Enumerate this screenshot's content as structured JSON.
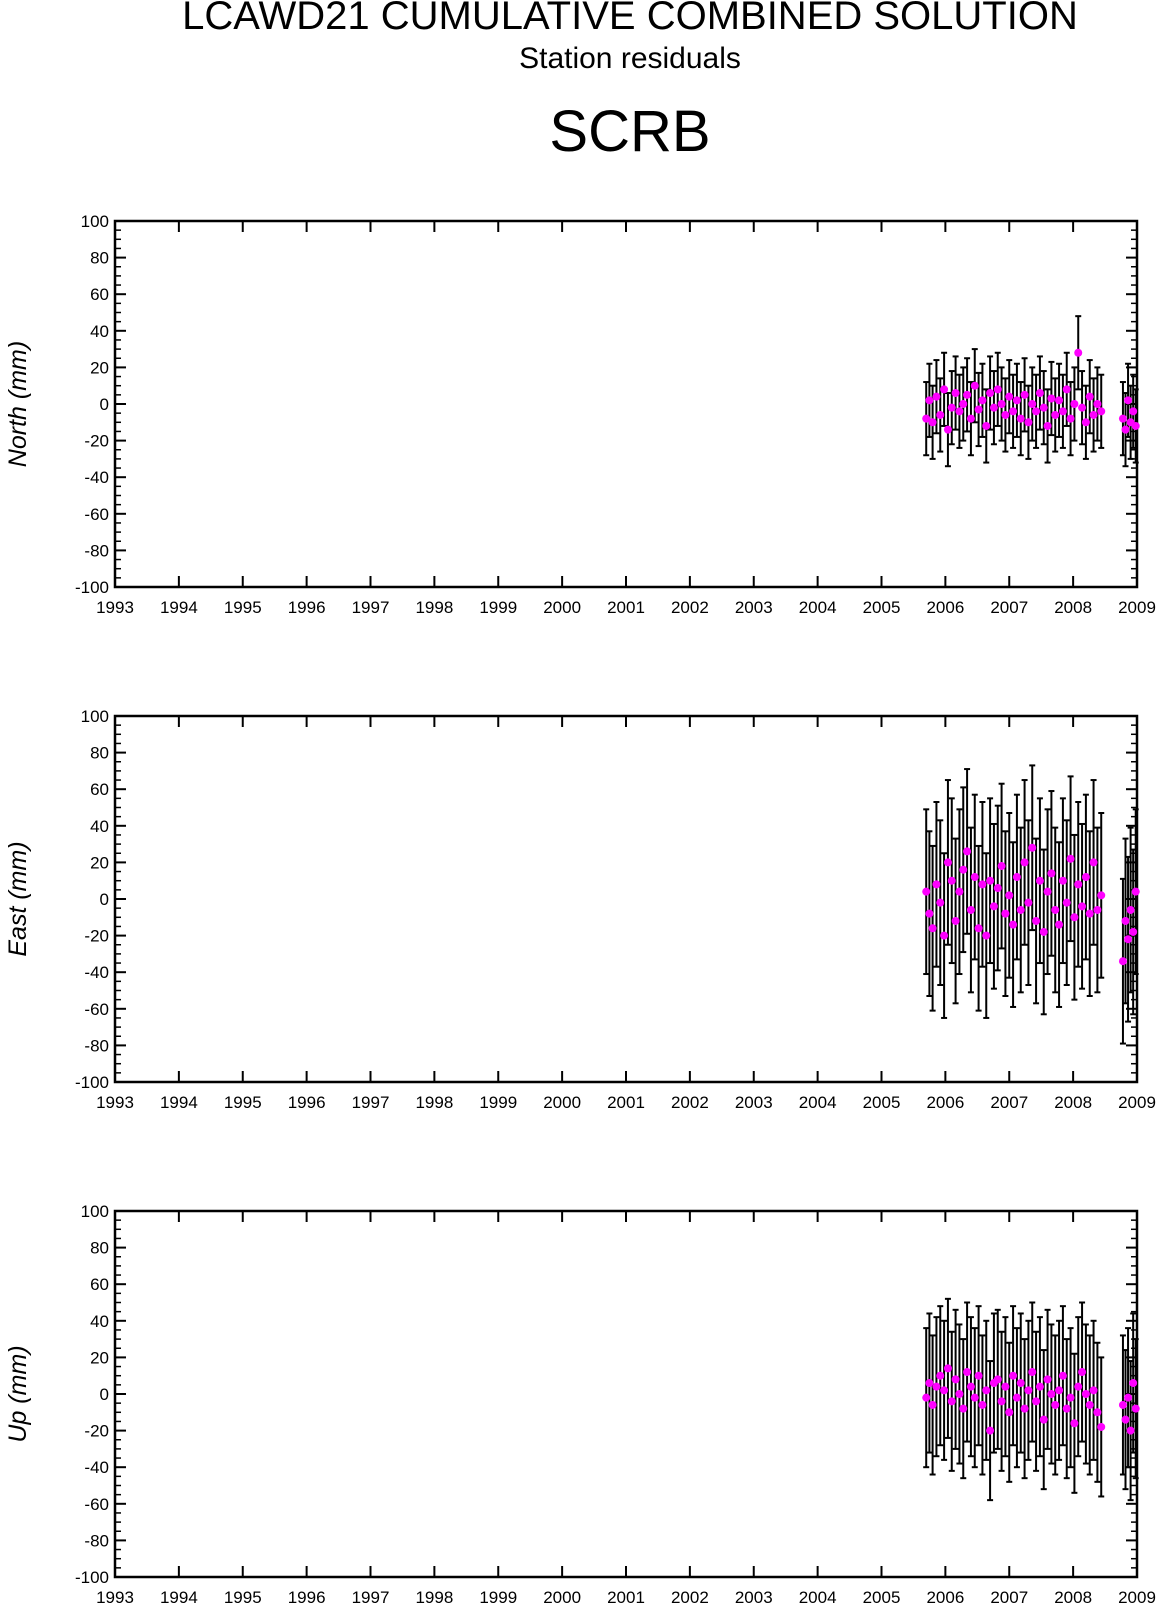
{
  "header": {
    "title": "LCAWD21 CUMULATIVE COMBINED SOLUTION",
    "subtitle": "Station residuals",
    "station": "SCRB"
  },
  "colors": {
    "point": "#ff00ff",
    "errorbar": "#000000",
    "axis": "#000000"
  },
  "chart_data": [
    {
      "type": "scatter",
      "ylabel": "North (mm)",
      "xlim": [
        1993,
        2009
      ],
      "ylim": [
        -100,
        100
      ],
      "x_ticks": [
        "1993",
        "1994",
        "1995",
        "1996",
        "1997",
        "1998",
        "1999",
        "2000",
        "2001",
        "2002",
        "2003",
        "2004",
        "2005",
        "2006",
        "2007",
        "2008",
        "2009"
      ],
      "y_ticks": [
        "100",
        "80",
        "60",
        "40",
        "20",
        "0",
        "-20",
        "-40",
        "-60",
        "-80",
        "-100"
      ],
      "error_bar_half_width": 20,
      "series": [
        {
          "x": [
            2005.7,
            2005.75,
            2005.8,
            2005.86,
            2005.92,
            2005.98,
            2006.04,
            2006.1,
            2006.16,
            2006.22,
            2006.28,
            2006.34,
            2006.4,
            2006.46,
            2006.52,
            2006.58,
            2006.64,
            2006.7,
            2006.76,
            2006.82,
            2006.88,
            2006.94,
            2007.0,
            2007.06,
            2007.12,
            2007.18,
            2007.24,
            2007.3,
            2007.36,
            2007.42,
            2007.48,
            2007.54,
            2007.6,
            2007.66,
            2007.72,
            2007.78,
            2007.84,
            2007.9,
            2007.96,
            2008.02,
            2008.08,
            2008.14,
            2008.2,
            2008.26,
            2008.32,
            2008.38,
            2008.44,
            2008.78,
            2008.82,
            2008.86,
            2008.9,
            2008.94,
            2008.98
          ],
          "y": [
            -8,
            2,
            -10,
            4,
            -6,
            8,
            -14,
            -2,
            6,
            -4,
            0,
            5,
            -8,
            10,
            -3,
            2,
            -12,
            6,
            -2,
            8,
            0,
            -6,
            4,
            -4,
            2,
            -8,
            5,
            -10,
            0,
            -4,
            6,
            -2,
            -12,
            3,
            -6,
            2,
            -4,
            8,
            -8,
            0,
            28,
            -2,
            -10,
            4,
            -6,
            0,
            -4,
            -8,
            -14,
            2,
            -10,
            -4,
            -12
          ]
        }
      ]
    },
    {
      "type": "scatter",
      "ylabel": "East (mm)",
      "xlim": [
        1993,
        2009
      ],
      "ylim": [
        -100,
        100
      ],
      "x_ticks": [
        "1993",
        "1994",
        "1995",
        "1996",
        "1997",
        "1998",
        "1999",
        "2000",
        "2001",
        "2002",
        "2003",
        "2004",
        "2005",
        "2006",
        "2007",
        "2008",
        "2009"
      ],
      "y_ticks": [
        "100",
        "80",
        "60",
        "40",
        "20",
        "0",
        "-20",
        "-40",
        "-60",
        "-80",
        "-100"
      ],
      "error_bar_half_width": 45,
      "series": [
        {
          "x": [
            2005.7,
            2005.75,
            2005.8,
            2005.86,
            2005.92,
            2005.98,
            2006.04,
            2006.1,
            2006.16,
            2006.22,
            2006.28,
            2006.34,
            2006.4,
            2006.46,
            2006.52,
            2006.58,
            2006.64,
            2006.7,
            2006.76,
            2006.82,
            2006.88,
            2006.94,
            2007.0,
            2007.06,
            2007.12,
            2007.18,
            2007.24,
            2007.3,
            2007.36,
            2007.42,
            2007.48,
            2007.54,
            2007.6,
            2007.66,
            2007.72,
            2007.78,
            2007.84,
            2007.9,
            2007.96,
            2008.02,
            2008.08,
            2008.14,
            2008.2,
            2008.26,
            2008.32,
            2008.38,
            2008.44,
            2008.78,
            2008.82,
            2008.86,
            2008.9,
            2008.94,
            2008.98
          ],
          "y": [
            4,
            -8,
            -16,
            8,
            -2,
            -20,
            20,
            10,
            -12,
            4,
            16,
            26,
            -6,
            12,
            -16,
            8,
            -20,
            10,
            -4,
            6,
            18,
            -8,
            2,
            -14,
            12,
            -6,
            20,
            -2,
            28,
            -12,
            10,
            -18,
            4,
            14,
            -6,
            -14,
            10,
            -2,
            22,
            -10,
            8,
            -4,
            12,
            -8,
            20,
            -6,
            2,
            -34,
            -12,
            -22,
            -6,
            -18,
            4
          ]
        }
      ]
    },
    {
      "type": "scatter",
      "ylabel": "Up (mm)",
      "xlim": [
        1993,
        2009
      ],
      "ylim": [
        -100,
        100
      ],
      "x_ticks": [
        "1993",
        "1994",
        "1995",
        "1996",
        "1997",
        "1998",
        "1999",
        "2000",
        "2001",
        "2002",
        "2003",
        "2004",
        "2005",
        "2006",
        "2007",
        "2008",
        "2009"
      ],
      "y_ticks": [
        "100",
        "80",
        "60",
        "40",
        "20",
        "0",
        "-20",
        "-40",
        "-60",
        "-80",
        "-100"
      ],
      "error_bar_half_width": 38,
      "series": [
        {
          "x": [
            2005.7,
            2005.75,
            2005.8,
            2005.86,
            2005.92,
            2005.98,
            2006.04,
            2006.1,
            2006.16,
            2006.22,
            2006.28,
            2006.34,
            2006.4,
            2006.46,
            2006.52,
            2006.58,
            2006.64,
            2006.7,
            2006.76,
            2006.82,
            2006.88,
            2006.94,
            2007.0,
            2007.06,
            2007.12,
            2007.18,
            2007.24,
            2007.3,
            2007.36,
            2007.42,
            2007.48,
            2007.54,
            2007.6,
            2007.66,
            2007.72,
            2007.78,
            2007.84,
            2007.9,
            2007.96,
            2008.02,
            2008.08,
            2008.14,
            2008.2,
            2008.26,
            2008.32,
            2008.38,
            2008.44,
            2008.78,
            2008.82,
            2008.86,
            2008.9,
            2008.94,
            2008.98
          ],
          "y": [
            -2,
            6,
            -6,
            4,
            10,
            2,
            14,
            -4,
            8,
            0,
            -8,
            12,
            4,
            -2,
            10,
            -6,
            2,
            -20,
            6,
            8,
            -4,
            4,
            -10,
            10,
            -2,
            6,
            -8,
            2,
            12,
            -4,
            4,
            -14,
            8,
            0,
            -6,
            2,
            10,
            -8,
            -2,
            -16,
            4,
            12,
            0,
            -6,
            2,
            -10,
            -18,
            -6,
            -14,
            -2,
            -20,
            6,
            -8
          ]
        }
      ]
    }
  ]
}
